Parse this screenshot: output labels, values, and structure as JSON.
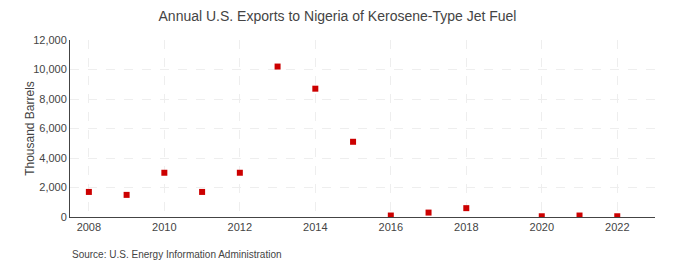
{
  "chart_data": {
    "type": "scatter",
    "title": "Annual U.S. Exports to Nigeria of Kerosene-Type Jet Fuel",
    "y_label": "Thousand Barrels",
    "annotations": [
      "Source: U.S. Energy Information Administration"
    ],
    "x": [
      2008,
      2009,
      2010,
      2011,
      2012,
      2013,
      2014,
      2015,
      2016,
      2017,
      2018,
      2020,
      2021,
      2022
    ],
    "values": [
      1700,
      1500,
      3000,
      1700,
      3000,
      10200,
      8700,
      5100,
      100,
      300,
      600,
      50,
      100,
      50
    ],
    "color": "#cc0000",
    "marker": "square",
    "xlim": [
      2007.5,
      2023.0
    ],
    "xticks": [
      2008,
      2010,
      2012,
      2014,
      2016,
      2018,
      2020,
      2022
    ],
    "ylim": [
      0,
      12000
    ],
    "yticks": [
      0,
      {
        "value": 2000,
        "label": "2,000"
      },
      {
        "value": 4000,
        "label": "4,000"
      },
      {
        "value": 6000,
        "label": "6,000"
      },
      {
        "value": 8000,
        "label": "8,000"
      },
      {
        "value": 10000,
        "label": "10,000"
      },
      {
        "value": 12000,
        "label": "12,000"
      }
    ],
    "grid": true
  }
}
